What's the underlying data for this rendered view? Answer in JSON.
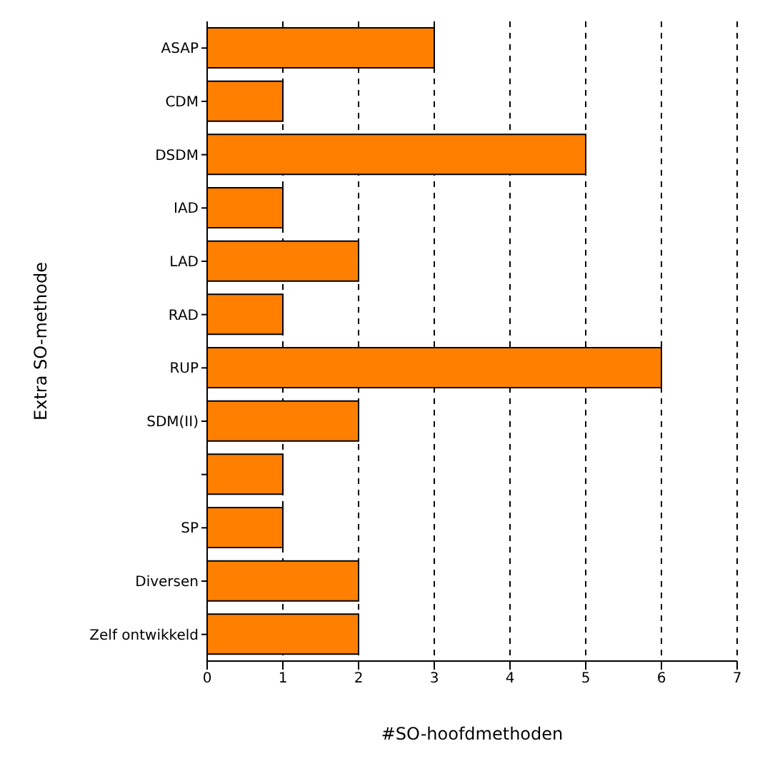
{
  "chart_data": {
    "type": "bar",
    "orientation": "horizontal",
    "xlabel": "#SO-hoofdmethoden",
    "ylabel": "Extra SO-methode",
    "categories": [
      "ASAP",
      "CDM",
      "DSDM",
      "IAD",
      "LAD",
      "RAD",
      "RUP",
      "SDM(II)",
      null,
      "SP",
      "Diversen",
      "Zelf ontwikkeld"
    ],
    "values": [
      3,
      1,
      5,
      1,
      2,
      1,
      6,
      2,
      1,
      1,
      2,
      2
    ],
    "color": "#ff8000",
    "xlim": [
      0,
      7
    ],
    "xticks": [
      0,
      1,
      2,
      3,
      4,
      5,
      6,
      7
    ],
    "grid": "x",
    "legend": false
  }
}
